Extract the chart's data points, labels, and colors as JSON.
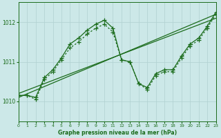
{
  "xlabel": "Graphe pression niveau de la mer (hPa)",
  "xlim": [
    0,
    23
  ],
  "ylim": [
    1009.5,
    1012.5
  ],
  "yticks": [
    1010,
    1011,
    1012
  ],
  "xticks": [
    0,
    1,
    2,
    3,
    4,
    5,
    6,
    7,
    8,
    9,
    10,
    11,
    12,
    13,
    14,
    15,
    16,
    17,
    18,
    19,
    20,
    21,
    22,
    23
  ],
  "bg_color": "#cce8e8",
  "grid_color": "#b0d0d0",
  "line_color": "#1a6b1a",
  "curve1_x": [
    0,
    1,
    2,
    3,
    4,
    5,
    6,
    7,
    8,
    9,
    10,
    11,
    12,
    13,
    14,
    15,
    16,
    17,
    18,
    19,
    20,
    21,
    22,
    23
  ],
  "curve1_y": [
    1010.15,
    1010.15,
    1010.05,
    1010.55,
    1010.75,
    1011.05,
    1011.35,
    1011.5,
    1011.7,
    1011.85,
    1011.95,
    1011.75,
    1011.05,
    1011.0,
    1010.45,
    1010.3,
    1010.65,
    1010.75,
    1010.75,
    1011.1,
    1011.4,
    1011.55,
    1011.85,
    1012.2
  ],
  "curve2_x": [
    0,
    1,
    2,
    3,
    4,
    5,
    6,
    7,
    8,
    9,
    10,
    11,
    12,
    13,
    14,
    15,
    16,
    17,
    18,
    19,
    20,
    21,
    22,
    23
  ],
  "curve2_y": [
    1010.15,
    1010.15,
    1010.1,
    1010.6,
    1010.8,
    1011.1,
    1011.45,
    1011.6,
    1011.8,
    1011.95,
    1012.05,
    1011.85,
    1011.05,
    1011.0,
    1010.45,
    1010.35,
    1010.7,
    1010.8,
    1010.8,
    1011.15,
    1011.45,
    1011.6,
    1011.9,
    1012.25
  ],
  "trend1_x": [
    0,
    23
  ],
  "trend1_y": [
    1010.1,
    1012.2
  ],
  "trend2_x": [
    0,
    23
  ],
  "trend2_y": [
    1010.2,
    1012.1
  ]
}
